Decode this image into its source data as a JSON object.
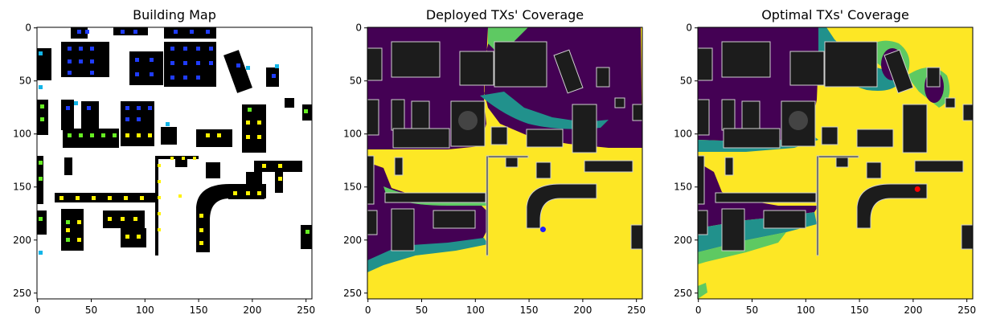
{
  "chart_data": [
    {
      "type": "heatmap",
      "title": "Building Map",
      "xlabel": "",
      "ylabel": "",
      "xlim": [
        0,
        255
      ],
      "ylim": [
        255,
        0
      ],
      "x_ticks": [
        0,
        50,
        100,
        150,
        200,
        250
      ],
      "y_ticks": [
        0,
        50,
        100,
        150,
        200,
        250
      ],
      "content": "building footprints (black) with candidate transmitter sites colored blue, cyan, green, yellow"
    },
    {
      "type": "heatmap",
      "title": "Deployed TXs' Coverage",
      "xlabel": "",
      "ylabel": "",
      "xlim": [
        0,
        255
      ],
      "ylim": [
        255,
        0
      ],
      "x_ticks": [
        0,
        50,
        100,
        150,
        200,
        250
      ],
      "y_ticks": [
        0,
        50,
        100,
        150,
        200,
        250
      ],
      "tx_points": [
        {
          "x": 163,
          "y": 190,
          "color": "#1f1fff"
        }
      ],
      "content": "coverage map: covered region yellow, partial teal/green, uncovered dark purple, buildings gray"
    },
    {
      "type": "heatmap",
      "title": "Optimal TXs' Coverage",
      "xlabel": "",
      "ylabel": "",
      "xlim": [
        0,
        255
      ],
      "ylim": [
        255,
        0
      ],
      "x_ticks": [
        0,
        50,
        100,
        150,
        200,
        250
      ],
      "y_ticks": [
        0,
        50,
        100,
        150,
        200,
        250
      ],
      "tx_points": [
        {
          "x": 204,
          "y": 152,
          "color": "#ff0000"
        }
      ],
      "content": "coverage map: covered region yellow, partial teal/green, uncovered dark purple, buildings gray"
    }
  ],
  "colors": {
    "building": "#000000",
    "building_gray": "#1c1c1c",
    "uncovered": "#440154",
    "partial_low": "#21918c",
    "partial_high": "#5ec962",
    "covered": "#fde725",
    "site_blue": "#1f3cff",
    "site_cyan": "#12b5e8",
    "site_green": "#66ee22",
    "site_yellow": "#fff200"
  }
}
